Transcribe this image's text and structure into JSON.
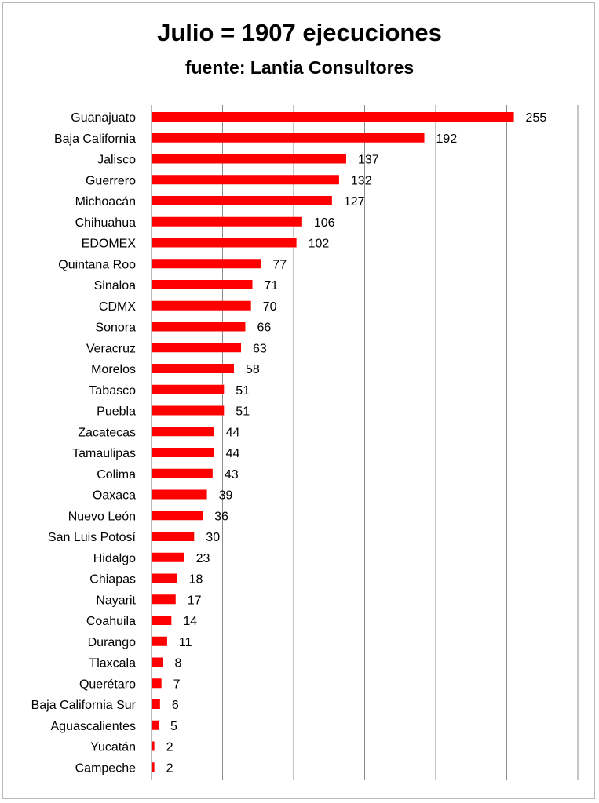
{
  "chart_data": {
    "type": "bar",
    "orientation": "horizontal",
    "title": "Julio = 1907 ejecuciones",
    "subtitle": "fuente: Lantia Consultores",
    "xlabel": "",
    "ylabel": "",
    "xlim": [
      0,
      300
    ],
    "grid": true,
    "legend": "none",
    "bar_color": "#ff0000",
    "categories": [
      "Guanajuato",
      "Baja California",
      "Jalisco",
      "Guerrero",
      "Michoacán",
      "Chihuahua",
      "EDOMEX",
      "Quintana Roo",
      "Sinaloa",
      "CDMX",
      "Sonora",
      "Veracruz",
      "Morelos",
      "Tabasco",
      "Puebla",
      "Zacatecas",
      "Tamaulipas",
      "Colima",
      "Oaxaca",
      "Nuevo León",
      "San Luis Potosí",
      "Hidalgo",
      "Chiapas",
      "Nayarit",
      "Coahuila",
      "Durango",
      "Tlaxcala",
      "Querétaro",
      "Baja California Sur",
      "Aguascalientes",
      "Yucatán",
      "Campeche"
    ],
    "values": [
      255,
      192,
      137,
      132,
      127,
      106,
      102,
      77,
      71,
      70,
      66,
      63,
      58,
      51,
      51,
      44,
      44,
      43,
      39,
      36,
      30,
      23,
      18,
      17,
      14,
      11,
      8,
      7,
      6,
      5,
      2,
      2
    ]
  }
}
